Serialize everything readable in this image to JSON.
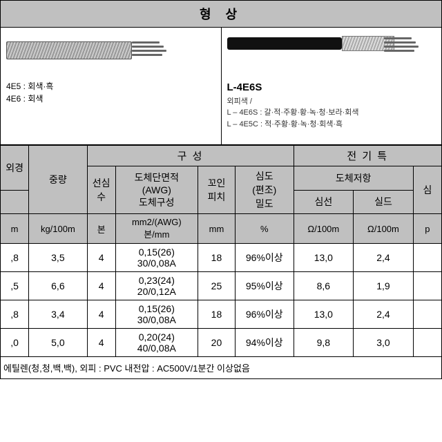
{
  "title": "형 상",
  "left_image": {
    "line1": "4E5 : 회색·흑",
    "line2": "4E6 : 회색"
  },
  "right_image": {
    "model": "L-4E6S",
    "sub1": "외피색 /",
    "sub2": "L – 4E6S : 갈·적·주황·황·녹·청·보라·회색",
    "sub3": "L – 4E5C : 적·주황·황·녹·청·회색·흑"
  },
  "headers": {
    "col_diam": "외경",
    "col_weight": "중량",
    "group_comp": "구 성",
    "col_cores": "선심수",
    "col_awg": "도체단면적\n(AWG)\n도체구성",
    "col_pitch": "꼬인\n피치",
    "col_density": "심도\n(편조)\n밀도",
    "group_elec": "전 기 특",
    "sub_resist": "도체저항",
    "col_core": "심선",
    "col_shield": "실드",
    "col_cap": "심"
  },
  "units": {
    "diam": "m",
    "weight": "kg/100m",
    "cores": "본",
    "awg": "mm2/(AWG)\n본/mm",
    "pitch": "mm",
    "density": "%",
    "core": "Ω/100m",
    "shield": "Ω/100m",
    "cap": "p"
  },
  "rows": [
    {
      "diam": ",8",
      "weight": "3,5",
      "cores": "4",
      "awg": "0,15(26)\n30/0,08A",
      "pitch": "18",
      "density": "96%이상",
      "core": "13,0",
      "shield": "2,4"
    },
    {
      "diam": ",5",
      "weight": "6,6",
      "cores": "4",
      "awg": "0,23(24)\n20/0,12A",
      "pitch": "25",
      "density": "95%이상",
      "core": "8,6",
      "shield": "1,9"
    },
    {
      "diam": ",8",
      "weight": "3,4",
      "cores": "4",
      "awg": "0,15(26)\n30/0,08A",
      "pitch": "18",
      "density": "96%이상",
      "core": "13,0",
      "shield": "2,4"
    },
    {
      "diam": ",0",
      "weight": "5,0",
      "cores": "4",
      "awg": "0,20(24)\n40/0,08A",
      "pitch": "20",
      "density": "94%이상",
      "core": "9,8",
      "shield": "3,0"
    }
  ],
  "footnote": "에틸렌(청,청,백,백), 외피 : PVC 내전압 : AC500V/1분간 이상없음",
  "colors": {
    "header_bg": "#c0c0c0",
    "border": "#000000",
    "text": "#000000"
  }
}
